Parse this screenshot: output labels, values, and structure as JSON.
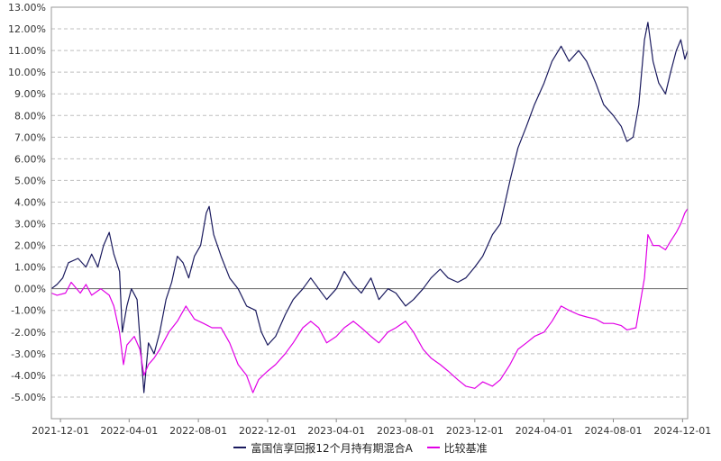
{
  "chart_data": {
    "type": "line",
    "y_axis": {
      "range": [
        -6,
        13
      ],
      "tick_values": [
        -5,
        -4,
        -3,
        -2,
        -1,
        0,
        1,
        2,
        3,
        4,
        5,
        6,
        7,
        8,
        9,
        10,
        11,
        12,
        13
      ],
      "tick_labels": [
        "-5.00%",
        "-4.00%",
        "-3.00%",
        "-2.00%",
        "-1.00%",
        "0.00%",
        "1.00%",
        "2.00%",
        "3.00%",
        "4.00%",
        "5.00%",
        "6.00%",
        "7.00%",
        "8.00%",
        "9.00%",
        "10.00%",
        "11.00%",
        "12.00%",
        "13.00%"
      ],
      "grid": "dashed"
    },
    "x_axis": {
      "range": [
        "2021-11-15",
        "2024-12-10"
      ],
      "tick_labels": [
        "2021-12-01",
        "2022-04-01",
        "2022-08-01",
        "2022-12-01",
        "2023-04-01",
        "2023-08-01",
        "2023-12-01",
        "2024-04-01",
        "2024-08-01",
        "2024-12-01"
      ]
    },
    "legend_position": "bottom",
    "series": [
      {
        "name": "富国信享回报12个月持有期混合A",
        "color": "#1a1a5e",
        "points": [
          [
            "2021-11-15",
            0.0
          ],
          [
            "2021-11-25",
            0.2
          ],
          [
            "2021-12-05",
            0.5
          ],
          [
            "2021-12-15",
            1.2
          ],
          [
            "2022-01-01",
            1.4
          ],
          [
            "2022-01-15",
            1.0
          ],
          [
            "2022-01-25",
            1.6
          ],
          [
            "2022-02-05",
            1.0
          ],
          [
            "2022-02-15",
            2.0
          ],
          [
            "2022-02-25",
            2.6
          ],
          [
            "2022-03-05",
            1.6
          ],
          [
            "2022-03-15",
            0.8
          ],
          [
            "2022-03-20",
            -2.0
          ],
          [
            "2022-03-28",
            -0.8
          ],
          [
            "2022-04-05",
            0.0
          ],
          [
            "2022-04-15",
            -0.5
          ],
          [
            "2022-04-22",
            -3.0
          ],
          [
            "2022-04-27",
            -4.8
          ],
          [
            "2022-05-05",
            -2.5
          ],
          [
            "2022-05-15",
            -3.0
          ],
          [
            "2022-05-25",
            -2.0
          ],
          [
            "2022-06-05",
            -0.5
          ],
          [
            "2022-06-15",
            0.3
          ],
          [
            "2022-06-25",
            1.5
          ],
          [
            "2022-07-05",
            1.2
          ],
          [
            "2022-07-15",
            0.5
          ],
          [
            "2022-07-25",
            1.5
          ],
          [
            "2022-08-05",
            2.0
          ],
          [
            "2022-08-15",
            3.5
          ],
          [
            "2022-08-20",
            3.8
          ],
          [
            "2022-08-28",
            2.5
          ],
          [
            "2022-09-10",
            1.5
          ],
          [
            "2022-09-25",
            0.5
          ],
          [
            "2022-10-10",
            0.0
          ],
          [
            "2022-10-25",
            -0.8
          ],
          [
            "2022-11-10",
            -1.0
          ],
          [
            "2022-11-20",
            -2.0
          ],
          [
            "2022-12-01",
            -2.6
          ],
          [
            "2022-12-15",
            -2.2
          ],
          [
            "2023-01-01",
            -1.2
          ],
          [
            "2023-01-15",
            -0.5
          ],
          [
            "2023-02-01",
            0.0
          ],
          [
            "2023-02-15",
            0.5
          ],
          [
            "2023-03-01",
            0.0
          ],
          [
            "2023-03-15",
            -0.5
          ],
          [
            "2023-04-01",
            0.0
          ],
          [
            "2023-04-15",
            0.8
          ],
          [
            "2023-05-01",
            0.2
          ],
          [
            "2023-05-15",
            -0.2
          ],
          [
            "2023-06-01",
            0.5
          ],
          [
            "2023-06-15",
            -0.5
          ],
          [
            "2023-07-01",
            0.0
          ],
          [
            "2023-07-15",
            -0.2
          ],
          [
            "2023-08-01",
            -0.8
          ],
          [
            "2023-08-15",
            -0.5
          ],
          [
            "2023-09-01",
            0.0
          ],
          [
            "2023-09-15",
            0.5
          ],
          [
            "2023-10-01",
            0.9
          ],
          [
            "2023-10-15",
            0.5
          ],
          [
            "2023-11-01",
            0.3
          ],
          [
            "2023-11-15",
            0.5
          ],
          [
            "2023-12-01",
            1.0
          ],
          [
            "2023-12-15",
            1.5
          ],
          [
            "2024-01-01",
            2.5
          ],
          [
            "2024-01-15",
            3.0
          ],
          [
            "2024-02-01",
            5.0
          ],
          [
            "2024-02-15",
            6.5
          ],
          [
            "2024-03-01",
            7.5
          ],
          [
            "2024-03-15",
            8.5
          ],
          [
            "2024-04-01",
            9.5
          ],
          [
            "2024-04-15",
            10.5
          ],
          [
            "2024-05-01",
            11.2
          ],
          [
            "2024-05-15",
            10.5
          ],
          [
            "2024-06-01",
            11.0
          ],
          [
            "2024-06-15",
            10.5
          ],
          [
            "2024-07-01",
            9.5
          ],
          [
            "2024-07-15",
            8.5
          ],
          [
            "2024-08-01",
            8.0
          ],
          [
            "2024-08-15",
            7.5
          ],
          [
            "2024-08-25",
            6.8
          ],
          [
            "2024-09-05",
            7.0
          ],
          [
            "2024-09-15",
            8.5
          ],
          [
            "2024-09-25",
            11.5
          ],
          [
            "2024-10-01",
            12.3
          ],
          [
            "2024-10-10",
            10.5
          ],
          [
            "2024-10-20",
            9.5
          ],
          [
            "2024-11-01",
            9.0
          ],
          [
            "2024-11-10",
            10.0
          ],
          [
            "2024-11-20",
            11.0
          ],
          [
            "2024-11-28",
            11.5
          ],
          [
            "2024-12-05",
            10.6
          ],
          [
            "2024-12-10",
            11.0
          ]
        ]
      },
      {
        "name": "比较基准",
        "color": "#e100e6",
        "points": [
          [
            "2021-11-15",
            -0.2
          ],
          [
            "2021-11-25",
            -0.3
          ],
          [
            "2021-12-10",
            -0.2
          ],
          [
            "2021-12-20",
            0.3
          ],
          [
            "2022-01-05",
            -0.2
          ],
          [
            "2022-01-15",
            0.2
          ],
          [
            "2022-01-25",
            -0.3
          ],
          [
            "2022-02-10",
            0.0
          ],
          [
            "2022-02-25",
            -0.3
          ],
          [
            "2022-03-05",
            -0.8
          ],
          [
            "2022-03-15",
            -2.0
          ],
          [
            "2022-03-22",
            -3.5
          ],
          [
            "2022-03-28",
            -2.6
          ],
          [
            "2022-04-10",
            -2.2
          ],
          [
            "2022-04-20",
            -2.8
          ],
          [
            "2022-04-27",
            -4.0
          ],
          [
            "2022-05-05",
            -3.5
          ],
          [
            "2022-05-15",
            -3.2
          ],
          [
            "2022-05-25",
            -2.8
          ],
          [
            "2022-06-10",
            -2.0
          ],
          [
            "2022-06-25",
            -1.5
          ],
          [
            "2022-07-10",
            -0.8
          ],
          [
            "2022-07-25",
            -1.4
          ],
          [
            "2022-08-10",
            -1.6
          ],
          [
            "2022-08-25",
            -1.8
          ],
          [
            "2022-09-10",
            -1.8
          ],
          [
            "2022-09-25",
            -2.5
          ],
          [
            "2022-10-10",
            -3.5
          ],
          [
            "2022-10-25",
            -4.0
          ],
          [
            "2022-11-05",
            -4.8
          ],
          [
            "2022-11-15",
            -4.2
          ],
          [
            "2022-12-01",
            -3.8
          ],
          [
            "2022-12-15",
            -3.5
          ],
          [
            "2023-01-01",
            -3.0
          ],
          [
            "2023-01-15",
            -2.5
          ],
          [
            "2023-02-01",
            -1.8
          ],
          [
            "2023-02-15",
            -1.5
          ],
          [
            "2023-03-01",
            -1.8
          ],
          [
            "2023-03-15",
            -2.5
          ],
          [
            "2023-04-01",
            -2.2
          ],
          [
            "2023-04-15",
            -1.8
          ],
          [
            "2023-05-01",
            -1.5
          ],
          [
            "2023-05-15",
            -1.8
          ],
          [
            "2023-06-01",
            -2.2
          ],
          [
            "2023-06-15",
            -2.5
          ],
          [
            "2023-07-01",
            -2.0
          ],
          [
            "2023-07-15",
            -1.8
          ],
          [
            "2023-08-01",
            -1.5
          ],
          [
            "2023-08-15",
            -2.0
          ],
          [
            "2023-09-01",
            -2.8
          ],
          [
            "2023-09-15",
            -3.2
          ],
          [
            "2023-10-01",
            -3.5
          ],
          [
            "2023-10-15",
            -3.8
          ],
          [
            "2023-11-01",
            -4.2
          ],
          [
            "2023-11-15",
            -4.5
          ],
          [
            "2023-12-01",
            -4.6
          ],
          [
            "2023-12-15",
            -4.3
          ],
          [
            "2024-01-01",
            -4.5
          ],
          [
            "2024-01-15",
            -4.2
          ],
          [
            "2024-02-01",
            -3.5
          ],
          [
            "2024-02-15",
            -2.8
          ],
          [
            "2024-03-01",
            -2.5
          ],
          [
            "2024-03-15",
            -2.2
          ],
          [
            "2024-04-01",
            -2.0
          ],
          [
            "2024-04-15",
            -1.5
          ],
          [
            "2024-05-01",
            -0.8
          ],
          [
            "2024-05-15",
            -1.0
          ],
          [
            "2024-06-01",
            -1.2
          ],
          [
            "2024-06-15",
            -1.3
          ],
          [
            "2024-07-01",
            -1.4
          ],
          [
            "2024-07-15",
            -1.6
          ],
          [
            "2024-08-01",
            -1.6
          ],
          [
            "2024-08-15",
            -1.7
          ],
          [
            "2024-08-25",
            -1.9
          ],
          [
            "2024-09-10",
            -1.8
          ],
          [
            "2024-09-25",
            0.5
          ],
          [
            "2024-10-01",
            2.5
          ],
          [
            "2024-10-10",
            2.0
          ],
          [
            "2024-10-20",
            2.0
          ],
          [
            "2024-11-01",
            1.8
          ],
          [
            "2024-11-10",
            2.2
          ],
          [
            "2024-11-20",
            2.6
          ],
          [
            "2024-11-28",
            3.0
          ],
          [
            "2024-12-05",
            3.5
          ],
          [
            "2024-12-10",
            3.7
          ]
        ]
      }
    ]
  },
  "legend": {
    "items": [
      {
        "label": "富国信享回报12个月持有期混合A",
        "color": "#1a1a5e"
      },
      {
        "label": "比较基准",
        "color": "#e100e6"
      }
    ]
  },
  "colors": {
    "grid": "#bfbfbf",
    "axis": "#888888",
    "zero_line": "#666666"
  }
}
